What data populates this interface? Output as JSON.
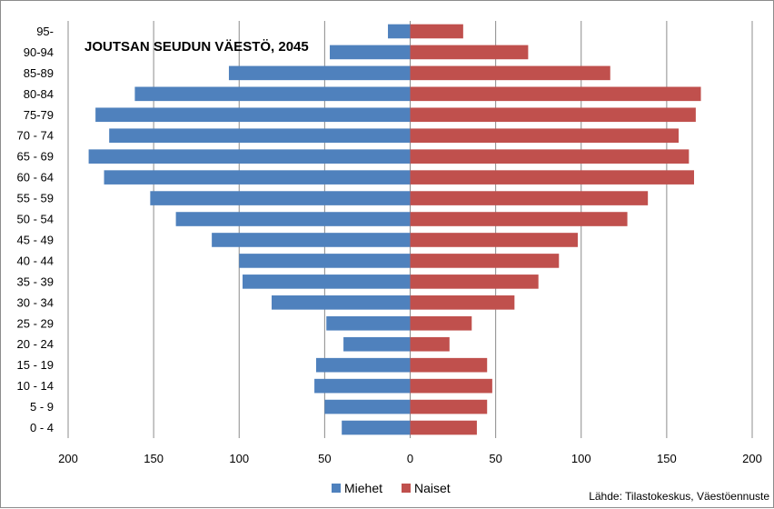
{
  "chart_data": {
    "type": "bar",
    "orientation": "horizontal",
    "title": "JOUTSAN SEUDUN VÄESTÖ, 2045",
    "categories": [
      "95-",
      "90-94",
      "85-89",
      "80-84",
      "75-79",
      "70 - 74",
      "65 - 69",
      "60 - 64",
      "55 - 59",
      "50 - 54",
      "45 - 49",
      "40 - 44",
      "35 - 39",
      "30 - 34",
      "25 - 29",
      "20 - 24",
      "15 - 19",
      "10 - 14",
      "5 - 9",
      "0 - 4"
    ],
    "series": [
      {
        "name": "Miehet",
        "color": "#4f81bd",
        "values": [
          13,
          47,
          106,
          161,
          184,
          176,
          188,
          179,
          152,
          137,
          116,
          100,
          98,
          81,
          49,
          39,
          55,
          56,
          50,
          40
        ]
      },
      {
        "name": "Naiset",
        "color": "#c0504d",
        "values": [
          31,
          69,
          117,
          170,
          167,
          157,
          163,
          166,
          139,
          127,
          98,
          87,
          75,
          61,
          36,
          23,
          45,
          48,
          45,
          39
        ]
      }
    ],
    "xlim": [
      -200,
      200
    ],
    "x_ticks": [
      "200",
      "150",
      "100",
      "50",
      "0",
      "50",
      "100",
      "150",
      "200"
    ],
    "grid": true,
    "legend_position": "bottom"
  },
  "source_note": "Lähde: Tilastokeskus, Väestöennuste"
}
